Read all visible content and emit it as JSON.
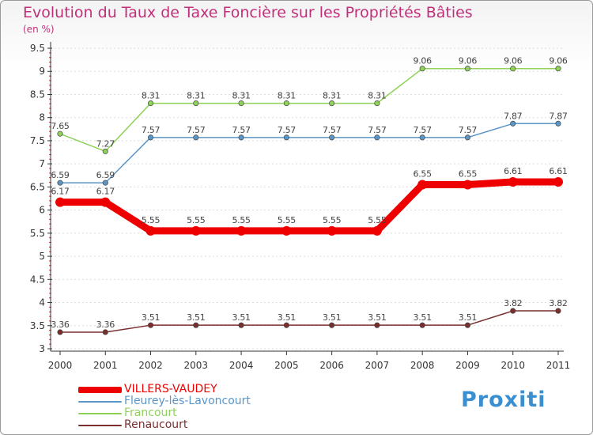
{
  "header": {
    "title": "Evolution du Taux de Taxe Foncière sur les Propriétés Bâties",
    "unit": "(en %)"
  },
  "chart_data": {
    "type": "line",
    "title": "Evolution du Taux de Taxe Foncière sur les Propriétés Bâties",
    "ylabel": "(en %)",
    "xlabel": "",
    "categories": [
      "2000",
      "2001",
      "2002",
      "2003",
      "2004",
      "2005",
      "2006",
      "2007",
      "2008",
      "2009",
      "2010",
      "2011"
    ],
    "ylim": [
      3,
      9.5
    ],
    "yticks": [
      "3",
      "3.5",
      "4",
      "4.5",
      "5",
      "5.5",
      "6",
      "6.5",
      "7",
      "7.5",
      "8",
      "8.5",
      "9",
      "9.5"
    ],
    "series": [
      {
        "name": "VILLERS-VAUDEY",
        "color": "#ee0000",
        "values": [
          6.17,
          6.17,
          5.55,
          5.55,
          5.55,
          5.55,
          5.55,
          5.55,
          6.55,
          6.55,
          6.61,
          6.61
        ],
        "labels": [
          "6.17",
          "6.17",
          "5.55",
          "5.55",
          "5.55",
          "5.55",
          "5.55",
          "5.55",
          "6.55",
          "6.55",
          "6.61",
          "6.61"
        ]
      },
      {
        "name": "Fleurey-lès-Lavoncourt",
        "color": "#5a96c8",
        "values": [
          6.59,
          6.59,
          7.57,
          7.57,
          7.57,
          7.57,
          7.57,
          7.57,
          7.57,
          7.57,
          7.87,
          7.87
        ],
        "labels": [
          "6.59",
          "6.59",
          "7.57",
          "7.57",
          "7.57",
          "7.57",
          "7.57",
          "7.57",
          "7.57",
          "7.57",
          "7.87",
          "7.87"
        ]
      },
      {
        "name": "Francourt",
        "color": "#8ed25a",
        "values": [
          7.65,
          7.27,
          8.31,
          8.31,
          8.31,
          8.31,
          8.31,
          8.31,
          9.06,
          9.06,
          9.06,
          9.06
        ],
        "labels": [
          "7.65",
          "7.27",
          "8.31",
          "8.31",
          "8.31",
          "8.31",
          "8.31",
          "8.31",
          "9.06",
          "9.06",
          "9.06",
          "9.06"
        ]
      },
      {
        "name": "Renaucourt",
        "color": "#7a2e2e",
        "values": [
          3.36,
          3.36,
          3.51,
          3.51,
          3.51,
          3.51,
          3.51,
          3.51,
          3.51,
          3.51,
          3.82,
          3.82
        ],
        "labels": [
          "3.36",
          "3.36",
          "3.51",
          "3.51",
          "3.51",
          "3.51",
          "3.51",
          "3.51",
          "3.51",
          "3.51",
          "3.82",
          "3.82"
        ]
      }
    ]
  },
  "legend": {
    "items": [
      {
        "label": "VILLERS-VAUDEY",
        "color": "#ee0000"
      },
      {
        "label": "Fleurey-lès-Lavoncourt",
        "color": "#5a96c8"
      },
      {
        "label": "Francourt",
        "color": "#8ed25a"
      },
      {
        "label": "Renaucourt",
        "color": "#7a2e2e"
      }
    ]
  },
  "logo": {
    "text": "Proxiti"
  }
}
